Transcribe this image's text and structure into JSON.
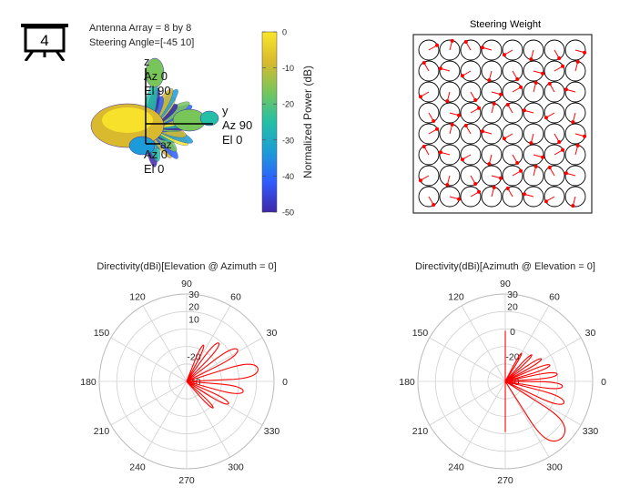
{
  "badge": {
    "number": "4",
    "icon": "presentation-board-icon"
  },
  "info": {
    "line1": "Antenna Array = 8 by 8",
    "line2": "Steering Angle=[-45 10]"
  },
  "pattern3d": {
    "axis_z": {
      "label": "z",
      "az": "Az 0",
      "el": "El 90"
    },
    "axis_y": {
      "label": "y",
      "az": "Az 90",
      "el": "El 0"
    },
    "axis_x": {
      "label": "az",
      "az": "Az 0",
      "el": "El 0"
    },
    "colors": [
      "#3e26a8",
      "#2f5dff",
      "#1d9bd8",
      "#24bfa6",
      "#78c65a",
      "#d9b92e",
      "#f9e62a"
    ]
  },
  "colorbar": {
    "label": "Normalized Power (dB)",
    "ticks": [
      "0",
      "-10",
      "-20",
      "-30",
      "-40",
      "-50"
    ],
    "range": [
      -50,
      0
    ]
  },
  "steering": {
    "title": "Steering Weight",
    "rows": 8,
    "cols": 8,
    "phases_deg": [
      [
        30,
        75,
        120,
        165,
        210,
        255,
        300,
        345
      ],
      [
        120,
        165,
        210,
        255,
        300,
        345,
        30,
        75
      ],
      [
        210,
        255,
        300,
        345,
        30,
        75,
        120,
        165
      ],
      [
        300,
        345,
        30,
        75,
        120,
        165,
        210,
        255
      ],
      [
        30,
        75,
        120,
        165,
        210,
        255,
        300,
        345
      ],
      [
        120,
        165,
        210,
        255,
        300,
        345,
        30,
        75
      ],
      [
        210,
        255,
        300,
        345,
        30,
        75,
        120,
        165
      ],
      [
        300,
        345,
        30,
        75,
        120,
        165,
        210,
        255
      ]
    ]
  },
  "chart_data": [
    {
      "type": "polar",
      "title": "Directivity(dBi)[Elevation @ Azimuth = 0]",
      "theta_ticks": [
        "0",
        "30",
        "60",
        "90",
        "120",
        "150",
        "180",
        "210",
        "240",
        "270",
        "300",
        "330"
      ],
      "r_ticks": [
        "-40",
        "-20",
        "10",
        "20",
        "30"
      ],
      "r_range": [
        -40,
        30
      ],
      "series": [
        {
          "color": "#ff0000",
          "lobes": [
            {
              "center_deg": 10,
              "width_deg": 16,
              "peak": 18
            },
            {
              "center_deg": 32,
              "width_deg": 12,
              "peak": 8
            },
            {
              "center_deg": -10,
              "width_deg": 12,
              "peak": 6
            },
            {
              "center_deg": 50,
              "width_deg": 10,
              "peak": 0
            },
            {
              "center_deg": -28,
              "width_deg": 10,
              "peak": -2
            },
            {
              "center_deg": 65,
              "width_deg": 8,
              "peak": -8
            },
            {
              "center_deg": -45,
              "width_deg": 8,
              "peak": -10
            }
          ]
        }
      ]
    },
    {
      "type": "polar",
      "title": "Directivity(dBi)[Azimuth @ Elevation = 0]",
      "theta_ticks": [
        "0",
        "30",
        "60",
        "90",
        "120",
        "150",
        "180",
        "210",
        "240",
        "270",
        "300",
        "330"
      ],
      "r_ticks": [
        "-40",
        "-20",
        "0",
        "20",
        "30"
      ],
      "r_range": [
        -40,
        30
      ],
      "series": [
        {
          "color": "#ff0000",
          "lobes": [
            {
              "center_deg": -45,
              "width_deg": 26,
              "peak": 24
            },
            {
              "center_deg": -20,
              "width_deg": 12,
              "peak": 10
            },
            {
              "center_deg": -5,
              "width_deg": 10,
              "peak": 6
            },
            {
              "center_deg": 8,
              "width_deg": 9,
              "peak": 2
            },
            {
              "center_deg": 20,
              "width_deg": 8,
              "peak": -2
            },
            {
              "center_deg": 32,
              "width_deg": 8,
              "peak": -6
            },
            {
              "center_deg": 45,
              "width_deg": 7,
              "peak": -10
            },
            {
              "center_deg": 60,
              "width_deg": 6,
              "peak": -14
            }
          ],
          "clip_half": "right"
        }
      ]
    }
  ]
}
